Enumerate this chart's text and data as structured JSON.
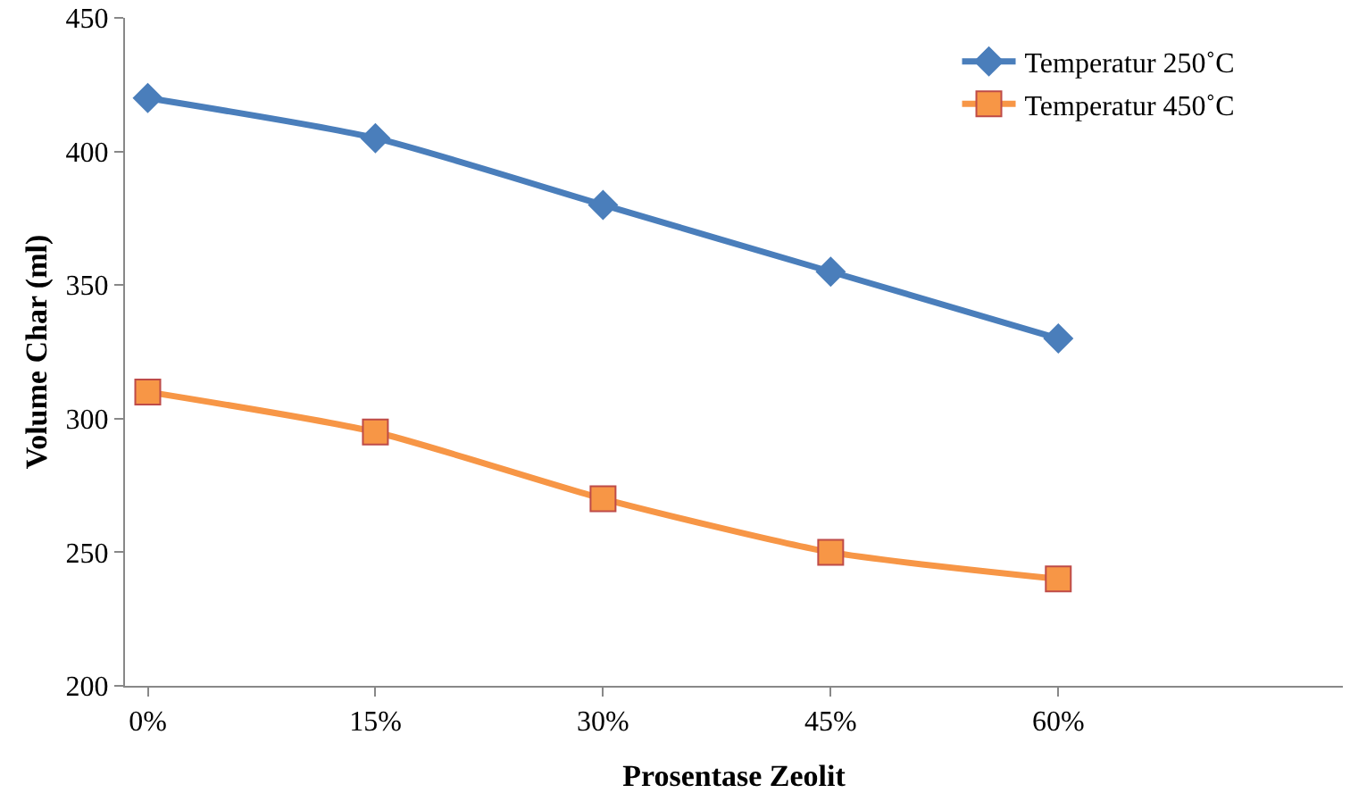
{
  "chart_data": {
    "type": "line",
    "xlabel": "Prosentase Zeolit",
    "ylabel": "Volume Char (ml)",
    "categories": [
      "0%",
      "15%",
      "30%",
      "45%",
      "60%"
    ],
    "series": [
      {
        "name": "Temperatur 250˚C",
        "color": "#4a7ebb",
        "marker": "diamond",
        "values": [
          420,
          405,
          380,
          355,
          330
        ]
      },
      {
        "name": "Temperatur 450˚C",
        "color": "#f79646",
        "marker": "square",
        "values": [
          310,
          295,
          270,
          250,
          240
        ]
      }
    ],
    "ylim": [
      200,
      450
    ],
    "yticks": [
      200,
      250,
      300,
      350,
      400,
      450
    ],
    "grid": false,
    "legend": "top right",
    "line_style": "solid"
  }
}
